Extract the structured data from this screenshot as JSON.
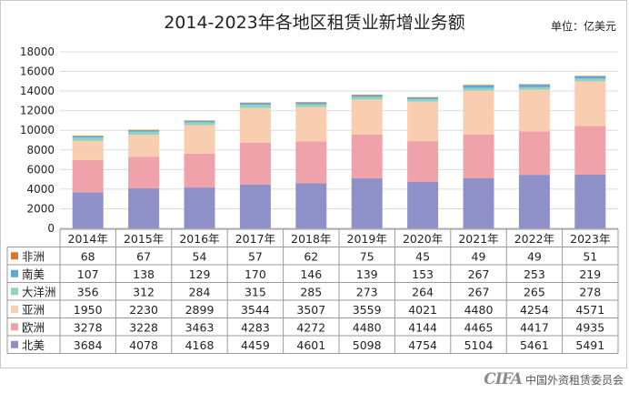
{
  "chart_data": {
    "type": "bar",
    "stacked": true,
    "title": "2014-2023年各地区租赁业新增业务额",
    "unit": "单位：亿美元",
    "categories": [
      "2014年",
      "2015年",
      "2016年",
      "2017年",
      "2018年",
      "2019年",
      "2020年",
      "2021年",
      "2022年",
      "2023年"
    ],
    "ylim": [
      0,
      18000
    ],
    "yticks": [
      0,
      2000,
      4000,
      6000,
      8000,
      10000,
      12000,
      14000,
      16000,
      18000
    ],
    "grid": true,
    "series": [
      {
        "name": "北美",
        "color": "#8f90c8",
        "values": [
          3684,
          4078,
          4168,
          4459,
          4601,
          5098,
          4754,
          5104,
          5461,
          5491
        ]
      },
      {
        "name": "欧洲",
        "color": "#f0a2aa",
        "values": [
          3278,
          3228,
          3463,
          4283,
          4272,
          4480,
          4144,
          4465,
          4417,
          4935
        ]
      },
      {
        "name": "亚洲",
        "color": "#f9cdb0",
        "values": [
          1950,
          2230,
          2899,
          3544,
          3507,
          3559,
          4021,
          4480,
          4254,
          4571
        ]
      },
      {
        "name": "大洋洲",
        "color": "#8fd3c1",
        "values": [
          356,
          312,
          284,
          315,
          285,
          273,
          264,
          267,
          265,
          278
        ]
      },
      {
        "name": "南美",
        "color": "#5aa9dc",
        "values": [
          107,
          138,
          129,
          170,
          146,
          139,
          153,
          267,
          253,
          219
        ]
      },
      {
        "name": "非洲",
        "color": "#d9782e",
        "values": [
          68,
          67,
          54,
          57,
          62,
          75,
          45,
          49,
          49,
          51
        ]
      }
    ],
    "table_order": [
      "非洲",
      "南美",
      "大洋洲",
      "亚洲",
      "欧洲",
      "北美"
    ]
  },
  "footer": {
    "logo": "CIFA",
    "org": "中国外资租赁委员会"
  }
}
